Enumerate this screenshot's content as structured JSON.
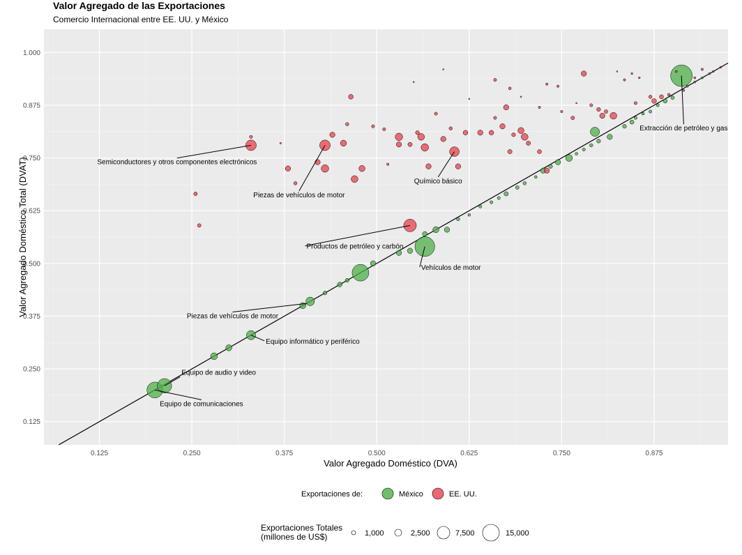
{
  "chart_data": {
    "type": "scatter",
    "title": "Valor Agregado de las Exportaciones",
    "subtitle": "Comercio Internacional entre EE. UU. y México",
    "xlabel": "Valor Agregado Doméstico (DVA)",
    "ylabel": "Valor Agregado Doméstico Total (DVAT)",
    "xlim": [
      0.05,
      0.975
    ],
    "ylim": [
      0.07,
      1.055
    ],
    "xticks": [
      "0.125",
      "0.250",
      "0.375",
      "0.500",
      "0.625",
      "0.750",
      "0.875"
    ],
    "yticks": [
      "0.125",
      "0.250",
      "0.375",
      "0.500",
      "0.625",
      "0.750",
      "0.875",
      "1.000"
    ],
    "reference_line": "y = x",
    "size_scale_max": 15000,
    "series": [
      {
        "name": "México",
        "color": "#4daf4a",
        "points": [
          {
            "x": 0.2,
            "y": 0.2,
            "s": 13500
          },
          {
            "x": 0.213,
            "y": 0.21,
            "s": 11000
          },
          {
            "x": 0.28,
            "y": 0.28,
            "s": 2500
          },
          {
            "x": 0.3,
            "y": 0.3,
            "s": 2000
          },
          {
            "x": 0.33,
            "y": 0.33,
            "s": 4500
          },
          {
            "x": 0.4,
            "y": 0.4,
            "s": 2000
          },
          {
            "x": 0.41,
            "y": 0.41,
            "s": 4000
          },
          {
            "x": 0.43,
            "y": 0.43,
            "s": 800
          },
          {
            "x": 0.45,
            "y": 0.45,
            "s": 1200
          },
          {
            "x": 0.46,
            "y": 0.46,
            "s": 800
          },
          {
            "x": 0.478,
            "y": 0.478,
            "s": 15000
          },
          {
            "x": 0.495,
            "y": 0.5,
            "s": 1500
          },
          {
            "x": 0.53,
            "y": 0.525,
            "s": 1500
          },
          {
            "x": 0.545,
            "y": 0.53,
            "s": 1500
          },
          {
            "x": 0.565,
            "y": 0.54,
            "s": 21000
          },
          {
            "x": 0.565,
            "y": 0.57,
            "s": 1200
          },
          {
            "x": 0.58,
            "y": 0.58,
            "s": 2000
          },
          {
            "x": 0.595,
            "y": 0.58,
            "s": 1500
          },
          {
            "x": 0.61,
            "y": 0.605,
            "s": 600
          },
          {
            "x": 0.625,
            "y": 0.615,
            "s": 400
          },
          {
            "x": 0.64,
            "y": 0.635,
            "s": 500
          },
          {
            "x": 0.655,
            "y": 0.645,
            "s": 500
          },
          {
            "x": 0.665,
            "y": 0.655,
            "s": 500
          },
          {
            "x": 0.675,
            "y": 0.665,
            "s": 1000
          },
          {
            "x": 0.69,
            "y": 0.68,
            "s": 700
          },
          {
            "x": 0.7,
            "y": 0.69,
            "s": 600
          },
          {
            "x": 0.715,
            "y": 0.705,
            "s": 400
          },
          {
            "x": 0.725,
            "y": 0.72,
            "s": 1500
          },
          {
            "x": 0.735,
            "y": 0.73,
            "s": 800
          },
          {
            "x": 0.745,
            "y": 0.74,
            "s": 1500
          },
          {
            "x": 0.76,
            "y": 0.75,
            "s": 2500
          },
          {
            "x": 0.77,
            "y": 0.76,
            "s": 400
          },
          {
            "x": 0.78,
            "y": 0.77,
            "s": 500
          },
          {
            "x": 0.79,
            "y": 0.78,
            "s": 600
          },
          {
            "x": 0.8,
            "y": 0.79,
            "s": 800
          },
          {
            "x": 0.815,
            "y": 0.8,
            "s": 1500
          },
          {
            "x": 0.795,
            "y": 0.812,
            "s": 4500
          },
          {
            "x": 0.835,
            "y": 0.825,
            "s": 800
          },
          {
            "x": 0.845,
            "y": 0.835,
            "s": 900
          },
          {
            "x": 0.85,
            "y": 0.845,
            "s": 500
          },
          {
            "x": 0.86,
            "y": 0.855,
            "s": 400
          },
          {
            "x": 0.87,
            "y": 0.86,
            "s": 500
          },
          {
            "x": 0.88,
            "y": 0.875,
            "s": 500
          },
          {
            "x": 0.89,
            "y": 0.885,
            "s": 900
          },
          {
            "x": 0.9,
            "y": 0.893,
            "s": 700
          },
          {
            "x": 0.912,
            "y": 0.945,
            "s": 25000
          },
          {
            "x": 0.92,
            "y": 0.92,
            "s": 250
          },
          {
            "x": 0.93,
            "y": 0.93,
            "s": 250
          },
          {
            "x": 0.94,
            "y": 0.94,
            "s": 250
          },
          {
            "x": 0.95,
            "y": 0.95,
            "s": 250
          }
        ]
      },
      {
        "name": "EE. UU.",
        "color": "#e8424a",
        "points": [
          {
            "x": 0.255,
            "y": 0.665,
            "s": 700
          },
          {
            "x": 0.26,
            "y": 0.59,
            "s": 700
          },
          {
            "x": 0.33,
            "y": 0.8,
            "s": 500
          },
          {
            "x": 0.33,
            "y": 0.78,
            "s": 6000
          },
          {
            "x": 0.37,
            "y": 0.785,
            "s": 150
          },
          {
            "x": 0.38,
            "y": 0.725,
            "s": 1500
          },
          {
            "x": 0.39,
            "y": 0.69,
            "s": 600
          },
          {
            "x": 0.42,
            "y": 0.74,
            "s": 1500
          },
          {
            "x": 0.43,
            "y": 0.725,
            "s": 3000
          },
          {
            "x": 0.43,
            "y": 0.78,
            "s": 6000
          },
          {
            "x": 0.44,
            "y": 0.805,
            "s": 1500
          },
          {
            "x": 0.455,
            "y": 0.785,
            "s": 2000
          },
          {
            "x": 0.46,
            "y": 0.83,
            "s": 600
          },
          {
            "x": 0.465,
            "y": 0.895,
            "s": 1200
          },
          {
            "x": 0.47,
            "y": 0.7,
            "s": 2500
          },
          {
            "x": 0.48,
            "y": 0.725,
            "s": 2000
          },
          {
            "x": 0.495,
            "y": 0.825,
            "s": 500
          },
          {
            "x": 0.51,
            "y": 0.818,
            "s": 500
          },
          {
            "x": 0.515,
            "y": 0.735,
            "s": 300
          },
          {
            "x": 0.53,
            "y": 0.782,
            "s": 1500
          },
          {
            "x": 0.53,
            "y": 0.8,
            "s": 3000
          },
          {
            "x": 0.545,
            "y": 0.782,
            "s": 1000
          },
          {
            "x": 0.545,
            "y": 0.59,
            "s": 8500
          },
          {
            "x": 0.555,
            "y": 0.81,
            "s": 800
          },
          {
            "x": 0.56,
            "y": 0.8,
            "s": 2500
          },
          {
            "x": 0.565,
            "y": 0.775,
            "s": 3000
          },
          {
            "x": 0.57,
            "y": 0.73,
            "s": 1500
          },
          {
            "x": 0.58,
            "y": 0.855,
            "s": 500
          },
          {
            "x": 0.59,
            "y": 0.795,
            "s": 1500
          },
          {
            "x": 0.6,
            "y": 0.82,
            "s": 600
          },
          {
            "x": 0.605,
            "y": 0.765,
            "s": 5000
          },
          {
            "x": 0.61,
            "y": 0.73,
            "s": 1500
          },
          {
            "x": 0.62,
            "y": 0.81,
            "s": 1200
          },
          {
            "x": 0.64,
            "y": 0.81,
            "s": 1500
          },
          {
            "x": 0.655,
            "y": 0.81,
            "s": 1200
          },
          {
            "x": 0.66,
            "y": 0.845,
            "s": 500
          },
          {
            "x": 0.67,
            "y": 0.825,
            "s": 1500
          },
          {
            "x": 0.675,
            "y": 0.87,
            "s": 1500
          },
          {
            "x": 0.68,
            "y": 0.765,
            "s": 1000
          },
          {
            "x": 0.685,
            "y": 0.805,
            "s": 800
          },
          {
            "x": 0.695,
            "y": 0.815,
            "s": 2000
          },
          {
            "x": 0.7,
            "y": 0.8,
            "s": 2500
          },
          {
            "x": 0.705,
            "y": 0.785,
            "s": 1000
          },
          {
            "x": 0.66,
            "y": 0.935,
            "s": 500
          },
          {
            "x": 0.68,
            "y": 0.915,
            "s": 400
          },
          {
            "x": 0.72,
            "y": 0.87,
            "s": 300
          },
          {
            "x": 0.73,
            "y": 0.925,
            "s": 300
          },
          {
            "x": 0.72,
            "y": 0.765,
            "s": 900
          },
          {
            "x": 0.73,
            "y": 0.72,
            "s": 1500
          },
          {
            "x": 0.745,
            "y": 0.92,
            "s": 300
          },
          {
            "x": 0.75,
            "y": 0.86,
            "s": 300
          },
          {
            "x": 0.765,
            "y": 0.845,
            "s": 700
          },
          {
            "x": 0.78,
            "y": 0.95,
            "s": 1500
          },
          {
            "x": 0.79,
            "y": 0.875,
            "s": 500
          },
          {
            "x": 0.8,
            "y": 0.865,
            "s": 800
          },
          {
            "x": 0.805,
            "y": 0.85,
            "s": 1500
          },
          {
            "x": 0.81,
            "y": 0.86,
            "s": 700
          },
          {
            "x": 0.82,
            "y": 0.85,
            "s": 2500
          },
          {
            "x": 0.835,
            "y": 0.935,
            "s": 300
          },
          {
            "x": 0.845,
            "y": 0.95,
            "s": 200
          },
          {
            "x": 0.85,
            "y": 0.88,
            "s": 500
          },
          {
            "x": 0.855,
            "y": 0.94,
            "s": 200
          },
          {
            "x": 0.87,
            "y": 0.895,
            "s": 600
          },
          {
            "x": 0.875,
            "y": 0.885,
            "s": 1200
          },
          {
            "x": 0.885,
            "y": 0.895,
            "s": 900
          },
          {
            "x": 0.895,
            "y": 0.9,
            "s": 400
          },
          {
            "x": 0.905,
            "y": 0.955,
            "s": 250
          },
          {
            "x": 0.915,
            "y": 0.91,
            "s": 250
          },
          {
            "x": 0.93,
            "y": 0.94,
            "s": 250
          },
          {
            "x": 0.94,
            "y": 0.96,
            "s": 300
          },
          {
            "x": 0.955,
            "y": 0.955,
            "s": 200
          },
          {
            "x": 0.965,
            "y": 0.965,
            "s": 200
          },
          {
            "x": 0.55,
            "y": 0.93,
            "s": 100
          },
          {
            "x": 0.59,
            "y": 0.96,
            "s": 100
          },
          {
            "x": 0.625,
            "y": 0.89,
            "s": 100
          },
          {
            "x": 0.695,
            "y": 0.895,
            "s": 100
          },
          {
            "x": 0.77,
            "y": 0.88,
            "s": 100
          },
          {
            "x": 0.825,
            "y": 0.955,
            "s": 100
          }
        ]
      }
    ],
    "annotations": [
      {
        "text": "Semiconductores y otros componentes electrónicos",
        "px": 0.33,
        "py": 0.78,
        "lx": 0.23,
        "ly": 0.735,
        "anchor": "middle"
      },
      {
        "text": "Piezas de vehículos de motor",
        "px": 0.43,
        "py": 0.78,
        "lx": 0.395,
        "ly": 0.657,
        "anchor": "middle"
      },
      {
        "text": "Químico básico",
        "px": 0.605,
        "py": 0.765,
        "lx": 0.583,
        "ly": 0.69,
        "anchor": "middle"
      },
      {
        "text": "Extracción de petróleo y gas",
        "px": 0.912,
        "py": 0.945,
        "lx": 0.915,
        "ly": 0.815,
        "anchor": "middle"
      },
      {
        "text": "Productos de petróleo y carbón",
        "px": 0.545,
        "py": 0.59,
        "lx": 0.405,
        "ly": 0.535,
        "anchor": "start"
      },
      {
        "text": "Vehículos de motor",
        "px": 0.565,
        "py": 0.54,
        "lx": 0.56,
        "ly": 0.485,
        "anchor": "start"
      },
      {
        "text": "Piezas de vehículos de motor",
        "px": 0.405,
        "py": 0.405,
        "lx": 0.305,
        "ly": 0.37,
        "anchor": "middle"
      },
      {
        "text": "Equipo informático y periférico",
        "px": 0.33,
        "py": 0.33,
        "lx": 0.35,
        "ly": 0.31,
        "anchor": "start"
      },
      {
        "text": "Equipo de audio y video",
        "px": 0.213,
        "py": 0.21,
        "lx": 0.236,
        "ly": 0.236,
        "anchor": "start"
      },
      {
        "text": "Equipo de comunicaciones",
        "px": 0.2,
        "py": 0.2,
        "lx": 0.263,
        "ly": 0.162,
        "anchor": "middle"
      }
    ],
    "legend_color": {
      "title": "Exportaciones de:",
      "items": [
        {
          "label": "México",
          "color": "#4daf4a"
        },
        {
          "label": "EE. UU.",
          "color": "#e8424a"
        }
      ]
    },
    "legend_size": {
      "title_lines": [
        "Exportaciones Totales",
        "(millones de US$)"
      ],
      "items": [
        {
          "label": "1,000",
          "value": 1000
        },
        {
          "label": "2,500",
          "value": 2500
        },
        {
          "label": "7,500",
          "value": 7500
        },
        {
          "label": "15,000",
          "value": 15000
        }
      ]
    }
  }
}
